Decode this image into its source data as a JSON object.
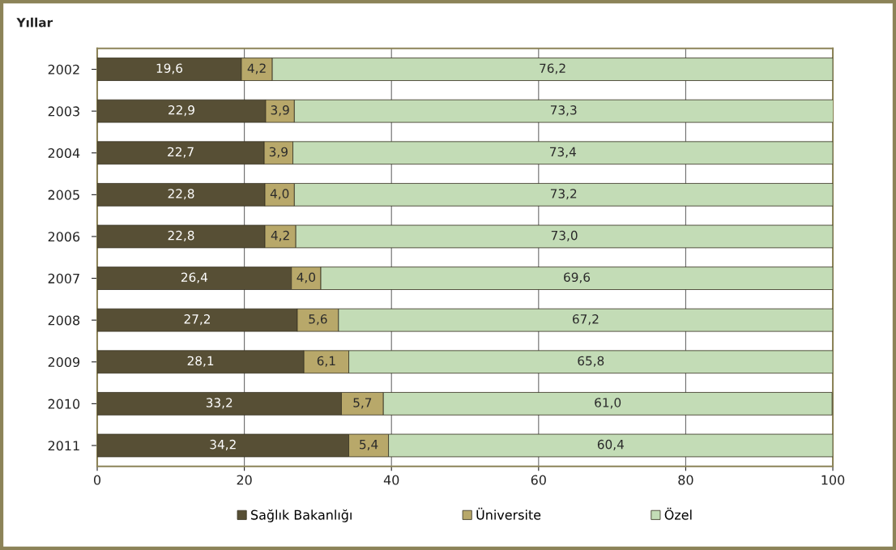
{
  "chart_data": {
    "type": "bar",
    "orientation": "horizontal",
    "stacked": true,
    "ylabel": "Yıllar",
    "categories": [
      "2002",
      "2003",
      "2004",
      "2005",
      "2006",
      "2007",
      "2008",
      "2009",
      "2010",
      "2011"
    ],
    "series": [
      {
        "name": "Sağlık Bakanlığı",
        "color": "#574f35",
        "values": [
          19.6,
          22.9,
          22.7,
          22.8,
          22.8,
          26.4,
          27.2,
          28.1,
          33.2,
          34.2
        ],
        "value_labels": [
          "19,6",
          "22,9",
          "22,7",
          "22,8",
          "22,8",
          "26,4",
          "27,2",
          "28,1",
          "33,2",
          "34,2"
        ]
      },
      {
        "name": "Üniversite",
        "color": "#b8a86a",
        "values": [
          4.2,
          3.9,
          3.9,
          4.0,
          4.2,
          4.0,
          5.6,
          6.1,
          5.7,
          5.4
        ],
        "value_labels": [
          "4,2",
          "3,9",
          "3,9",
          "4,0",
          "4,2",
          "4,0",
          "5,6",
          "6,1",
          "5,7",
          "5,4"
        ]
      },
      {
        "name": "Özel",
        "color": "#c3dcb6",
        "values": [
          76.2,
          73.3,
          73.4,
          73.2,
          73.0,
          69.6,
          67.2,
          65.8,
          61.0,
          60.4
        ],
        "value_labels": [
          "76,2",
          "73,3",
          "73,4",
          "73,2",
          "73,0",
          "69,6",
          "67,2",
          "65,8",
          "61,0",
          "60,4"
        ]
      }
    ],
    "xlim": [
      0,
      100
    ],
    "xticks": [
      0,
      20,
      40,
      60,
      80,
      100
    ],
    "grid": "x",
    "legend": "bottom"
  }
}
